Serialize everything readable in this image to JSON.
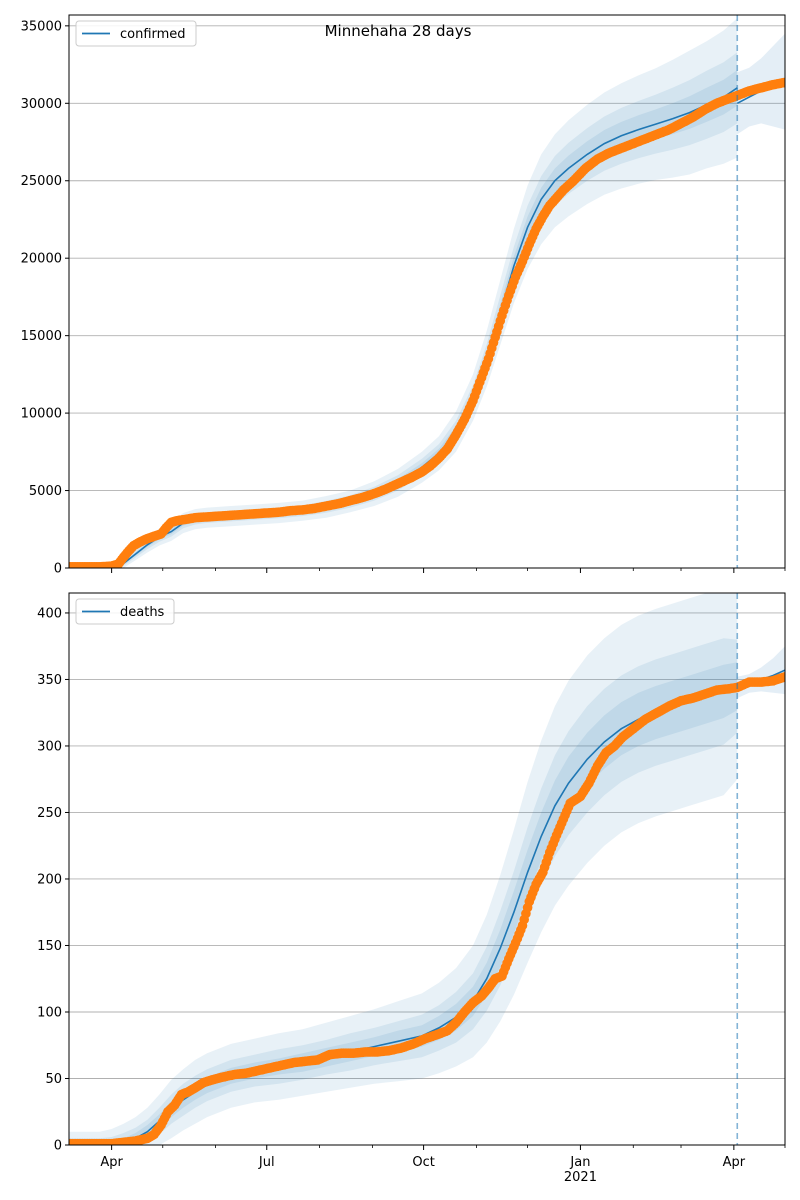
{
  "figure_title": "Minnehaha 28 days",
  "colors": {
    "model_line": "#1f77b4",
    "band": "#1f77b4",
    "observed": "#ff7f0e",
    "grid": "#b0b0b0",
    "vline": "#1f77b4"
  },
  "x_ticks_major": [
    {
      "date": "2020-04-01",
      "label": "Apr"
    },
    {
      "date": "2020-07-01",
      "label": "Jul"
    },
    {
      "date": "2020-10-01",
      "label": "Oct"
    },
    {
      "date": "2021-01-01",
      "label": "Jan",
      "sublabel": "2021"
    },
    {
      "date": "2021-04-01",
      "label": "Apr"
    }
  ],
  "x_ticks_minor": [
    "2020-03-01",
    "2020-05-01",
    "2020-06-01",
    "2020-08-01",
    "2020-09-01",
    "2020-11-01",
    "2020-12-01",
    "2021-02-01",
    "2021-03-01",
    "2021-05-01"
  ],
  "chart_data": [
    {
      "type": "line",
      "legend": "confirmed",
      "legend_position": "top-left",
      "xlim": [
        "2020-03-07",
        "2021-05-01"
      ],
      "ylim": [
        0,
        35700
      ],
      "y_ticks": [
        0,
        5000,
        10000,
        15000,
        20000,
        25000,
        30000,
        35000
      ],
      "grid": "horizontal",
      "forecast_start": "2021-04-03",
      "model": {
        "name": "confirmed",
        "x": [
          "2020-03-07",
          "2020-03-25",
          "2020-04-01",
          "2020-04-08",
          "2020-04-15",
          "2020-04-22",
          "2020-04-29",
          "2020-05-06",
          "2020-05-13",
          "2020-05-20",
          "2020-05-27",
          "2020-06-10",
          "2020-06-24",
          "2020-07-08",
          "2020-07-22",
          "2020-08-05",
          "2020-08-19",
          "2020-09-02",
          "2020-09-16",
          "2020-09-30",
          "2020-10-10",
          "2020-10-20",
          "2020-10-30",
          "2020-11-07",
          "2020-11-15",
          "2020-11-23",
          "2020-12-01",
          "2020-12-09",
          "2020-12-17",
          "2020-12-25",
          "2021-01-05",
          "2021-01-15",
          "2021-01-25",
          "2021-02-04",
          "2021-02-14",
          "2021-02-24",
          "2021-03-06",
          "2021-03-16",
          "2021-03-26",
          "2021-04-03"
        ],
        "y": [
          0,
          0,
          80,
          300,
          900,
          1500,
          2000,
          2350,
          2900,
          3150,
          3250,
          3350,
          3450,
          3550,
          3700,
          3950,
          4300,
          4800,
          5500,
          6500,
          7400,
          8800,
          11000,
          13500,
          16500,
          19500,
          22000,
          23800,
          25000,
          25800,
          26700,
          27400,
          27900,
          28300,
          28650,
          29000,
          29400,
          29900,
          30400,
          31000
        ],
        "band90_half": [
          0,
          0,
          100,
          300,
          400,
          500,
          550,
          600,
          650,
          650,
          650,
          650,
          650,
          650,
          650,
          700,
          700,
          800,
          900,
          1000,
          1100,
          1300,
          1500,
          1800,
          2100,
          2400,
          2700,
          2900,
          3000,
          3100,
          3200,
          3300,
          3400,
          3500,
          3600,
          3800,
          4000,
          4100,
          4300,
          4500
        ],
        "band50_half": [
          0,
          0,
          50,
          150,
          220,
          280,
          300,
          320,
          340,
          340,
          340,
          340,
          340,
          340,
          350,
          380,
          400,
          450,
          500,
          550,
          600,
          700,
          800,
          950,
          1100,
          1250,
          1400,
          1500,
          1600,
          1650,
          1700,
          1750,
          1800,
          1850,
          1900,
          2000,
          2100,
          2200,
          2250,
          2300
        ],
        "band25_half": [
          0,
          0,
          25,
          70,
          110,
          140,
          150,
          160,
          170,
          170,
          170,
          170,
          170,
          170,
          175,
          190,
          200,
          225,
          250,
          275,
          300,
          350,
          400,
          475,
          550,
          625,
          700,
          750,
          800,
          825,
          850,
          875,
          900,
          925,
          950,
          1000,
          1050,
          1100,
          1125,
          1150
        ]
      },
      "forecast": {
        "x": [
          "2021-04-03",
          "2021-04-10",
          "2021-04-17",
          "2021-04-24",
          "2021-05-01"
        ],
        "y": [
          30000,
          30400,
          30800,
          31100,
          31400
        ],
        "band_half": [
          2000,
          1900,
          2100,
          2600,
          3100
        ]
      },
      "observed": {
        "x": [
          "2020-03-07",
          "2020-03-25",
          "2020-04-01",
          "2020-04-05",
          "2020-04-08",
          "2020-04-11",
          "2020-04-14",
          "2020-04-18",
          "2020-04-22",
          "2020-04-26",
          "2020-04-30",
          "2020-05-03",
          "2020-05-06",
          "2020-05-09",
          "2020-05-12",
          "2020-05-15",
          "2020-05-20",
          "2020-05-27",
          "2020-06-03",
          "2020-06-10",
          "2020-06-17",
          "2020-06-24",
          "2020-07-01",
          "2020-07-08",
          "2020-07-15",
          "2020-07-22",
          "2020-07-29",
          "2020-08-05",
          "2020-08-12",
          "2020-08-19",
          "2020-08-26",
          "2020-09-02",
          "2020-09-09",
          "2020-09-16",
          "2020-09-23",
          "2020-09-30",
          "2020-10-05",
          "2020-10-10",
          "2020-10-15",
          "2020-10-20",
          "2020-10-25",
          "2020-10-30",
          "2020-11-04",
          "2020-11-08",
          "2020-11-12",
          "2020-11-16",
          "2020-11-20",
          "2020-11-24",
          "2020-11-28",
          "2020-12-02",
          "2020-12-06",
          "2020-12-10",
          "2020-12-14",
          "2020-12-18",
          "2020-12-22",
          "2020-12-28",
          "2021-01-04",
          "2021-01-11",
          "2021-01-18",
          "2021-01-25",
          "2021-02-01",
          "2021-02-08",
          "2021-02-15",
          "2021-02-22",
          "2021-03-01",
          "2021-03-08",
          "2021-03-15",
          "2021-03-22",
          "2021-03-29",
          "2021-04-03",
          "2021-04-10",
          "2021-04-17",
          "2021-04-24",
          "2021-05-01"
        ],
        "y": [
          80,
          80,
          120,
          250,
          700,
          1100,
          1450,
          1700,
          1900,
          2050,
          2200,
          2600,
          2950,
          3050,
          3100,
          3150,
          3250,
          3300,
          3350,
          3400,
          3450,
          3500,
          3550,
          3600,
          3700,
          3750,
          3850,
          4000,
          4150,
          4350,
          4550,
          4800,
          5100,
          5450,
          5800,
          6200,
          6600,
          7100,
          7700,
          8600,
          9600,
          10800,
          12300,
          13500,
          14900,
          16300,
          17600,
          18800,
          19800,
          20900,
          21900,
          22700,
          23400,
          23900,
          24400,
          25000,
          25800,
          26400,
          26800,
          27100,
          27400,
          27700,
          28000,
          28300,
          28700,
          29100,
          29600,
          30000,
          30300,
          30500,
          30800,
          31000,
          31200,
          31350
        ]
      }
    },
    {
      "type": "line",
      "legend": "deaths",
      "legend_position": "top-left",
      "xlim": [
        "2020-03-07",
        "2021-05-01"
      ],
      "ylim": [
        0,
        415
      ],
      "y_ticks": [
        0,
        50,
        100,
        150,
        200,
        250,
        300,
        350,
        400
      ],
      "grid": "horizontal",
      "forecast_start": "2021-04-03",
      "model": {
        "name": "deaths",
        "x": [
          "2020-03-07",
          "2020-03-25",
          "2020-04-01",
          "2020-04-08",
          "2020-04-15",
          "2020-04-22",
          "2020-04-29",
          "2020-05-06",
          "2020-05-13",
          "2020-05-20",
          "2020-05-27",
          "2020-06-10",
          "2020-06-24",
          "2020-07-08",
          "2020-07-22",
          "2020-08-05",
          "2020-08-19",
          "2020-09-02",
          "2020-09-16",
          "2020-09-30",
          "2020-10-10",
          "2020-10-20",
          "2020-10-30",
          "2020-11-07",
          "2020-11-15",
          "2020-11-23",
          "2020-12-01",
          "2020-12-09",
          "2020-12-17",
          "2020-12-25",
          "2021-01-05",
          "2021-01-15",
          "2021-01-25",
          "2021-02-04",
          "2021-02-14",
          "2021-02-24",
          "2021-03-06",
          "2021-03-16",
          "2021-03-26",
          "2021-04-03"
        ],
        "y": [
          0,
          0,
          0,
          2,
          5,
          10,
          18,
          27,
          34,
          40,
          45,
          52,
          56,
          59,
          62,
          66,
          70,
          74,
          78,
          82,
          88,
          96,
          108,
          125,
          148,
          175,
          205,
          232,
          255,
          272,
          290,
          303,
          313,
          320,
          325,
          329,
          333,
          337,
          341,
          345
        ],
        "band90_half": [
          10,
          10,
          12,
          14,
          16,
          18,
          20,
          22,
          23,
          24,
          24,
          24,
          24,
          25,
          25,
          26,
          27,
          28,
          30,
          32,
          34,
          37,
          42,
          48,
          55,
          62,
          68,
          72,
          75,
          77,
          78,
          78,
          78,
          78,
          78,
          78,
          78,
          78,
          78,
          70
        ],
        "band50_half": [
          5,
          5,
          6,
          7,
          8,
          9,
          10,
          11,
          12,
          12,
          12,
          12,
          12,
          13,
          13,
          13,
          14,
          14,
          15,
          16,
          17,
          19,
          21,
          24,
          28,
          31,
          34,
          36,
          38,
          39,
          40,
          40,
          40,
          40,
          40,
          40,
          40,
          40,
          40,
          35
        ],
        "band25_half": [
          2,
          2,
          3,
          3,
          4,
          5,
          5,
          6,
          6,
          6,
          6,
          6,
          6,
          6,
          7,
          7,
          7,
          7,
          8,
          8,
          9,
          10,
          11,
          12,
          14,
          16,
          17,
          18,
          19,
          20,
          20,
          20,
          20,
          20,
          20,
          20,
          20,
          20,
          20,
          18
        ]
      },
      "forecast": {
        "x": [
          "2021-04-03",
          "2021-04-10",
          "2021-04-17",
          "2021-04-24",
          "2021-05-01"
        ],
        "y": [
          344,
          347,
          350,
          353,
          357
        ],
        "band_half": [
          8,
          7,
          9,
          13,
          18
        ]
      },
      "observed": {
        "x": [
          "2020-03-07",
          "2020-03-25",
          "2020-04-01",
          "2020-04-08",
          "2020-04-15",
          "2020-04-22",
          "2020-04-26",
          "2020-04-30",
          "2020-05-04",
          "2020-05-08",
          "2020-05-12",
          "2020-05-16",
          "2020-05-20",
          "2020-05-25",
          "2020-05-30",
          "2020-06-05",
          "2020-06-12",
          "2020-06-19",
          "2020-06-26",
          "2020-07-03",
          "2020-07-10",
          "2020-07-17",
          "2020-07-24",
          "2020-07-31",
          "2020-08-07",
          "2020-08-14",
          "2020-08-21",
          "2020-08-28",
          "2020-09-04",
          "2020-09-11",
          "2020-09-18",
          "2020-09-25",
          "2020-10-02",
          "2020-10-09",
          "2020-10-15",
          "2020-10-20",
          "2020-10-25",
          "2020-10-30",
          "2020-11-04",
          "2020-11-08",
          "2020-11-12",
          "2020-11-16",
          "2020-11-20",
          "2020-11-24",
          "2020-11-28",
          "2020-12-02",
          "2020-12-06",
          "2020-12-10",
          "2020-12-14",
          "2020-12-18",
          "2020-12-22",
          "2020-12-26",
          "2021-01-01",
          "2021-01-06",
          "2021-01-11",
          "2021-01-16",
          "2021-01-21",
          "2021-01-26",
          "2021-02-01",
          "2021-02-08",
          "2021-02-15",
          "2021-02-22",
          "2021-03-01",
          "2021-03-08",
          "2021-03-15",
          "2021-03-22",
          "2021-03-29",
          "2021-04-03",
          "2021-04-10",
          "2021-04-17",
          "2021-04-24",
          "2021-05-01"
        ],
        "y": [
          1,
          1,
          1,
          2,
          3,
          5,
          8,
          15,
          25,
          30,
          38,
          40,
          43,
          47,
          49,
          51,
          53,
          54,
          56,
          58,
          60,
          62,
          63,
          64,
          68,
          69,
          69,
          70,
          70,
          71,
          73,
          76,
          80,
          83,
          86,
          92,
          100,
          107,
          112,
          118,
          125,
          127,
          140,
          152,
          165,
          183,
          196,
          205,
          220,
          233,
          245,
          257,
          262,
          272,
          285,
          295,
          300,
          307,
          313,
          320,
          325,
          330,
          334,
          336,
          339,
          342,
          343,
          344,
          348,
          348,
          349,
          352
        ]
      }
    }
  ]
}
